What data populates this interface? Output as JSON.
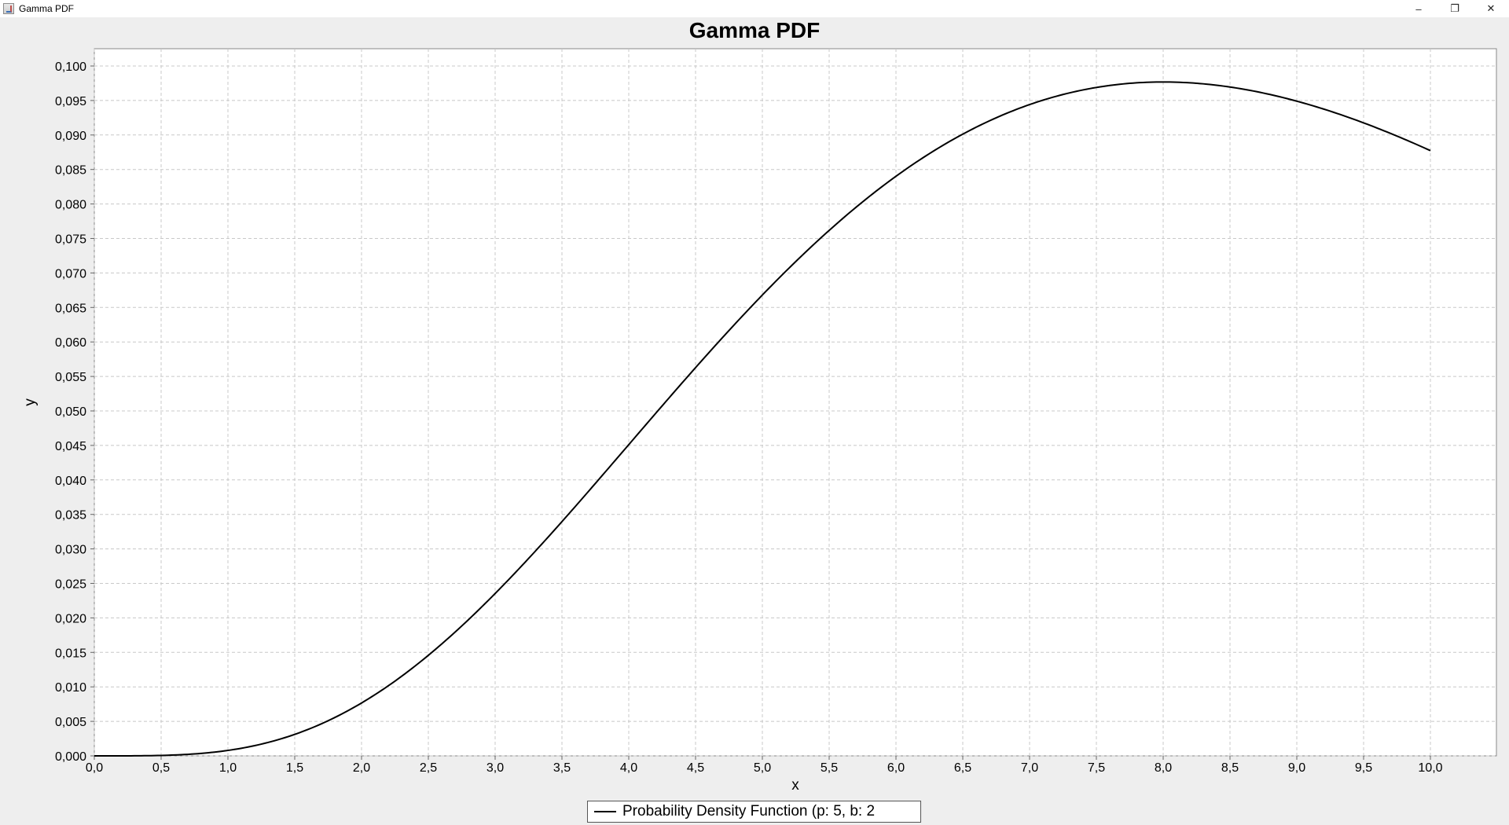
{
  "window": {
    "title": "Gamma PDF",
    "icon": "java-app-icon",
    "controls": {
      "minimize": "–",
      "restore": "❐",
      "close": "✕"
    }
  },
  "chart_data": {
    "type": "line",
    "title": "Gamma PDF",
    "xlabel": "x",
    "ylabel": "y",
    "xlim": [
      0,
      10.5
    ],
    "ylim": [
      0,
      0.1
    ],
    "x_ticks": [
      "0,0",
      "0,5",
      "1,0",
      "1,5",
      "2,0",
      "2,5",
      "3,0",
      "3,5",
      "4,0",
      "4,5",
      "5,0",
      "5,5",
      "6,0",
      "6,5",
      "7,0",
      "7,5",
      "8,0",
      "8,5",
      "9,0",
      "9,5",
      "10,0"
    ],
    "y_ticks": [
      "0,000",
      "0,005",
      "0,010",
      "0,015",
      "0,020",
      "0,025",
      "0,030",
      "0,035",
      "0,040",
      "0,045",
      "0,050",
      "0,055",
      "0,060",
      "0,065",
      "0,070",
      "0,075",
      "0,080",
      "0,085",
      "0,090",
      "0,095",
      "0,100"
    ],
    "grid": true,
    "legend_position": "bottom-center",
    "series": [
      {
        "name": "Probability Density Function (p: 5, b: 2",
        "color": "#000000",
        "x": [
          0,
          0.5,
          1,
          1.5,
          2,
          2.5,
          3,
          3.5,
          4,
          4.5,
          5,
          5.5,
          6,
          6.5,
          7,
          7.5,
          8,
          8.5,
          9,
          9.5,
          10
        ],
        "y": [
          0,
          8e-05,
          0.00079,
          0.00305,
          0.00766,
          0.01504,
          0.0251,
          0.03741,
          0.05026,
          0.06263,
          0.06681,
          0.07584,
          0.08402,
          0.08981,
          0.0944,
          0.09683,
          0.0977,
          0.09713,
          0.0949,
          0.09183,
          0.08773
        ]
      }
    ]
  }
}
